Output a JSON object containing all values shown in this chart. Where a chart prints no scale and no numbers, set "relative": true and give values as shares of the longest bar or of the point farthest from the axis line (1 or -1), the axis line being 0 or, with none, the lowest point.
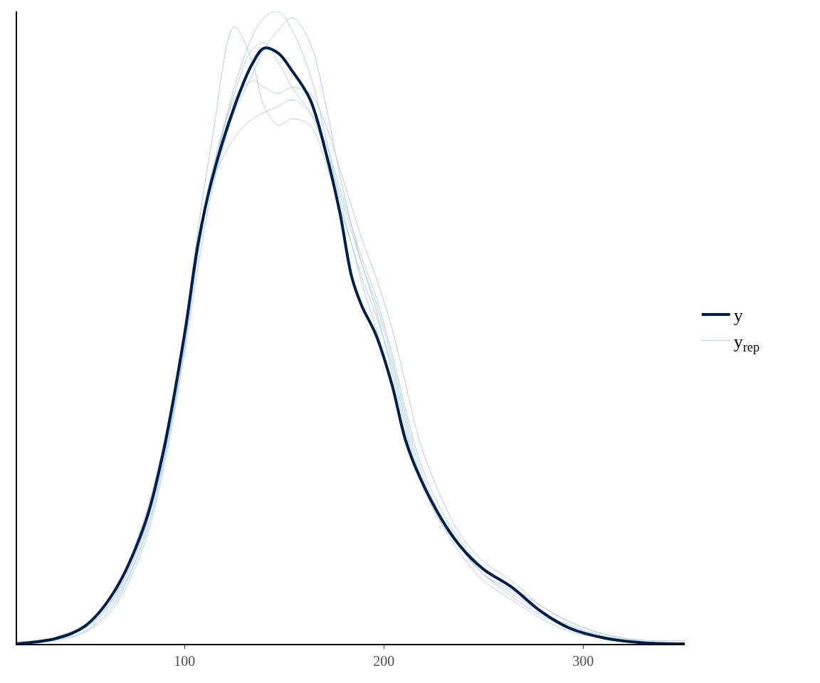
{
  "chart_data": {
    "type": "line",
    "relative": true,
    "x": [
      16,
      36,
      50,
      64,
      79,
      89,
      100,
      107,
      114,
      125,
      134,
      140,
      147,
      154,
      163,
      171,
      178,
      184,
      189,
      196,
      204,
      211,
      218,
      229,
      239,
      250,
      264,
      279,
      293,
      311,
      329,
      351
    ],
    "xlim": [
      16,
      351
    ],
    "xticks": [
      100,
      200,
      300
    ],
    "tick_labels": "x",
    "legend": "right",
    "marker": "none",
    "line_style": "solid",
    "series": [
      {
        "name": "y$_{rep}$",
        "color": "#b3cde0",
        "values": [
          0.003,
          0.01,
          0.025,
          0.07,
          0.17,
          0.29,
          0.48,
          0.63,
          0.74,
          0.88,
          0.96,
          0.99,
          1.0,
          0.97,
          0.9,
          0.8,
          0.7,
          0.63,
          0.57,
          0.5,
          0.41,
          0.33,
          0.26,
          0.19,
          0.15,
          0.11,
          0.08,
          0.05,
          0.03,
          0.012,
          0.004,
          null
        ]
      },
      {
        "color": "#b3cde0",
        "values": [
          null,
          0.012,
          0.03,
          0.08,
          0.19,
          0.31,
          0.5,
          0.66,
          0.8,
          0.975,
          0.92,
          0.85,
          0.82,
          0.83,
          0.82,
          0.76,
          0.69,
          0.63,
          0.58,
          0.52,
          0.44,
          0.35,
          0.27,
          0.2,
          0.15,
          0.11,
          0.085,
          0.05,
          0.028,
          0.01,
          0.003,
          0.002
        ]
      },
      {
        "color": "#b3cde0",
        "values": [
          null,
          0.008,
          0.02,
          0.06,
          0.16,
          0.28,
          0.47,
          0.62,
          0.73,
          0.8,
          0.83,
          0.84,
          0.85,
          0.86,
          0.84,
          0.79,
          0.72,
          0.66,
          0.61,
          0.55,
          0.46,
          0.37,
          0.29,
          0.21,
          0.16,
          0.12,
          0.09,
          0.06,
          0.035,
          0.015,
          0.005,
          null
        ]
      },
      {
        "color": "#b3cde0",
        "values": [
          0.001,
          0.006,
          0.018,
          0.055,
          0.15,
          0.27,
          0.46,
          0.6,
          0.72,
          0.84,
          0.9,
          0.94,
          0.97,
          0.99,
          0.95,
          0.85,
          0.74,
          0.66,
          0.6,
          0.53,
          0.43,
          0.34,
          0.26,
          0.19,
          0.14,
          0.1,
          0.07,
          0.04,
          0.02,
          0.008,
          null,
          null
        ]
      },
      {
        "color": "#b3cde0",
        "values": [
          null,
          null,
          0.026,
          0.072,
          0.17,
          0.3,
          0.49,
          0.64,
          0.75,
          0.86,
          0.89,
          0.88,
          0.87,
          0.88,
          0.87,
          0.82,
          0.75,
          0.69,
          0.64,
          0.58,
          0.5,
          0.41,
          0.32,
          0.23,
          0.17,
          0.13,
          0.1,
          0.06,
          0.035,
          0.015,
          0.006,
          0.005
        ]
      },
      {
        "color": "#b3cde0",
        "values": [
          null,
          null,
          0.024,
          0.065,
          0.16,
          0.28,
          0.47,
          0.62,
          0.74,
          0.87,
          0.94,
          0.95,
          0.92,
          0.88,
          0.84,
          0.78,
          0.71,
          0.65,
          0.6,
          0.54,
          0.45,
          0.36,
          0.28,
          0.2,
          0.15,
          0.11,
          0.075,
          0.045,
          0.025,
          0.01,
          null,
          null
        ]
      },
      {
        "name": "y",
        "color": "#011f4b",
        "values": [
          0,
          0.009,
          0.028,
          0.079,
          0.18,
          0.298,
          0.489,
          0.636,
          0.737,
          0.849,
          0.917,
          0.942,
          0.934,
          0.906,
          0.861,
          0.776,
          0.681,
          0.579,
          0.534,
          0.489,
          0.411,
          0.321,
          0.264,
          0.197,
          0.152,
          0.118,
          0.09,
          0.051,
          0.025,
          0.009,
          0.002,
          0
        ]
      }
    ]
  }
}
